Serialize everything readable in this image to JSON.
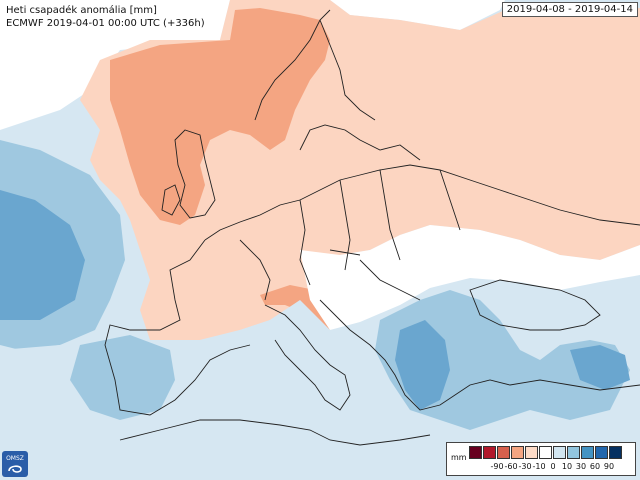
{
  "title": {
    "line1": "Heti csapadék anomália [mm]",
    "line2": "ECMWF 2019-04-01 00:00 UTC (+336h)"
  },
  "date_range": "2019-04-08 - 2019-04-14",
  "logo": {
    "text": "OMSZ",
    "icon": "omsz-logo-icon"
  },
  "legend": {
    "unit": "mm",
    "colors": [
      "#67001f",
      "#b2182b",
      "#d6604d",
      "#f4a582",
      "#fddbc7",
      "#ffffff",
      "#d1e5f0",
      "#92c5de",
      "#4393c3",
      "#2166ac",
      "#053061"
    ],
    "ticks": [
      "-90",
      "-60",
      "-30",
      "-10",
      "0",
      "10",
      "30",
      "60",
      "90"
    ]
  },
  "colors": {
    "sea_light_blue": "#d6e7f2",
    "blue_mid": "#9fc8e0",
    "blue_dark": "#6aa6cf",
    "salmon_light": "#fcd5c1",
    "salmon_mid": "#f4a582",
    "white": "#ffffff",
    "border": "#222222"
  }
}
